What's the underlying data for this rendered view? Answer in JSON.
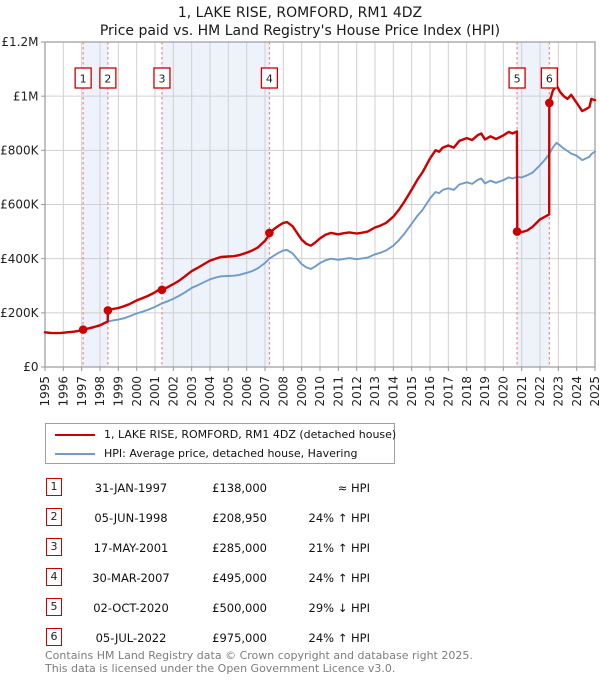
{
  "title": "1, LAKE RISE, ROMFORD, RM1 4DZ",
  "subtitle": "Price paid vs. HM Land Registry's House Price Index (HPI)",
  "legend": {
    "series1": "1, LAKE RISE, ROMFORD, RM1 4DZ (detached house)",
    "series2": "HPI: Average price, detached house, Havering"
  },
  "sales": [
    {
      "num": "1",
      "date": "31-JAN-1997",
      "price": "£138,000",
      "hpi": "≈ HPI",
      "x": 1997.08,
      "value": 138
    },
    {
      "num": "2",
      "date": "05-JUN-1998",
      "price": "£208,950",
      "hpi": "24% ↑ HPI",
      "x": 1998.43,
      "value": 208.95
    },
    {
      "num": "3",
      "date": "17-MAY-2001",
      "price": "£285,000",
      "hpi": "21% ↑ HPI",
      "x": 2001.38,
      "value": 285
    },
    {
      "num": "4",
      "date": "30-MAR-2007",
      "price": "£495,000",
      "hpi": "24% ↑ HPI",
      "x": 2007.24,
      "value": 495
    },
    {
      "num": "5",
      "date": "02-OCT-2020",
      "price": "£500,000",
      "hpi": "29% ↓ HPI",
      "x": 2020.75,
      "value": 500
    },
    {
      "num": "6",
      "date": "05-JUL-2022",
      "price": "£975,000",
      "hpi": "24% ↑ HPI",
      "x": 2022.51,
      "value": 975
    }
  ],
  "footer": {
    "line1": "Contains HM Land Registry data © Crown copyright and database right 2025.",
    "line2": "This data is licensed under the Open Government Licence v3.0."
  },
  "chart_data": {
    "type": "line",
    "title": "1, LAKE RISE, ROMFORD, RM1 4DZ",
    "subtitle": "Price paid vs. HM Land Registry's House Price Index (HPI)",
    "x_range": [
      1995,
      2025
    ],
    "y_range_thousands": [
      0,
      1200
    ],
    "grid": true,
    "legend_position": "below",
    "y_ticks": [
      {
        "v": 0,
        "label": "£0"
      },
      {
        "v": 200,
        "label": "£200K"
      },
      {
        "v": 400,
        "label": "£400K"
      },
      {
        "v": 600,
        "label": "£600K"
      },
      {
        "v": 800,
        "label": "£800K"
      },
      {
        "v": 1000,
        "label": "£1M"
      },
      {
        "v": 1200,
        "label": "£1.2M"
      }
    ],
    "x_ticks": [
      "1995",
      "1996",
      "1997",
      "1998",
      "1999",
      "2000",
      "2001",
      "2002",
      "2003",
      "2004",
      "2005",
      "2006",
      "2007",
      "2008",
      "2009",
      "2010",
      "2011",
      "2012",
      "2013",
      "2014",
      "2015",
      "2016",
      "2017",
      "2018",
      "2019",
      "2020",
      "2021",
      "2022",
      "2023",
      "2024",
      "2025"
    ],
    "bands": [
      [
        1997.08,
        1998.43
      ],
      [
        2001.38,
        2007.24
      ],
      [
        2020.75,
        2022.51
      ]
    ],
    "colors": {
      "property": "#cc0000",
      "hpi": "#6f9bcb",
      "band": "#edf2fb",
      "grid": "#d0d0d0",
      "border": "#9a9a9a",
      "dashed": "#ef8a8a",
      "tick_text": "#222222"
    },
    "series": [
      {
        "name": "1, LAKE RISE, ROMFORD, RM1 4DZ (detached house)",
        "color": "#cc0000",
        "width": 2.4,
        "points": [
          [
            1995.0,
            128
          ],
          [
            1995.3,
            126
          ],
          [
            1995.6,
            125
          ],
          [
            1995.9,
            126
          ],
          [
            1996.2,
            128
          ],
          [
            1996.5,
            130
          ],
          [
            1996.8,
            133
          ],
          [
            1997.08,
            138
          ],
          [
            1997.4,
            143
          ],
          [
            1997.7,
            148
          ],
          [
            1998.0,
            154
          ],
          [
            1998.2,
            161
          ],
          [
            1998.42,
            168
          ],
          [
            1998.43,
            209
          ],
          [
            1998.7,
            214
          ],
          [
            1999.0,
            218
          ],
          [
            1999.3,
            224
          ],
          [
            1999.6,
            232
          ],
          [
            2000.0,
            246
          ],
          [
            2000.3,
            254
          ],
          [
            2000.6,
            262
          ],
          [
            2001.0,
            276
          ],
          [
            2001.37,
            292
          ],
          [
            2001.38,
            285
          ],
          [
            2001.7,
            295
          ],
          [
            2002.0,
            306
          ],
          [
            2002.3,
            318
          ],
          [
            2002.6,
            333
          ],
          [
            2003.0,
            354
          ],
          [
            2003.3,
            365
          ],
          [
            2003.6,
            377
          ],
          [
            2004.0,
            393
          ],
          [
            2004.3,
            400
          ],
          [
            2004.6,
            406
          ],
          [
            2005.0,
            408
          ],
          [
            2005.3,
            409
          ],
          [
            2005.6,
            413
          ],
          [
            2006.0,
            422
          ],
          [
            2006.3,
            430
          ],
          [
            2006.6,
            441
          ],
          [
            2007.0,
            466
          ],
          [
            2007.2,
            485
          ],
          [
            2007.24,
            495
          ],
          [
            2007.5,
            510
          ],
          [
            2007.75,
            522
          ],
          [
            2008.0,
            532
          ],
          [
            2008.2,
            535
          ],
          [
            2008.5,
            520
          ],
          [
            2008.75,
            495
          ],
          [
            2009.0,
            470
          ],
          [
            2009.25,
            455
          ],
          [
            2009.5,
            448
          ],
          [
            2009.75,
            460
          ],
          [
            2010.0,
            475
          ],
          [
            2010.3,
            488
          ],
          [
            2010.6,
            495
          ],
          [
            2011.0,
            490
          ],
          [
            2011.3,
            494
          ],
          [
            2011.6,
            497
          ],
          [
            2012.0,
            493
          ],
          [
            2012.3,
            496
          ],
          [
            2012.6,
            500
          ],
          [
            2013.0,
            515
          ],
          [
            2013.3,
            522
          ],
          [
            2013.6,
            532
          ],
          [
            2014.0,
            555
          ],
          [
            2014.3,
            580
          ],
          [
            2014.6,
            610
          ],
          [
            2015.0,
            655
          ],
          [
            2015.3,
            690
          ],
          [
            2015.6,
            720
          ],
          [
            2016.0,
            770
          ],
          [
            2016.3,
            800
          ],
          [
            2016.5,
            795
          ],
          [
            2016.7,
            810
          ],
          [
            2017.0,
            818
          ],
          [
            2017.3,
            810
          ],
          [
            2017.6,
            835
          ],
          [
            2018.0,
            845
          ],
          [
            2018.3,
            838
          ],
          [
            2018.6,
            856
          ],
          [
            2018.8,
            862
          ],
          [
            2019.0,
            840
          ],
          [
            2019.3,
            852
          ],
          [
            2019.6,
            842
          ],
          [
            2020.0,
            855
          ],
          [
            2020.3,
            868
          ],
          [
            2020.5,
            862
          ],
          [
            2020.74,
            870
          ],
          [
            2020.76,
            500
          ],
          [
            2021.0,
            498
          ],
          [
            2021.3,
            504
          ],
          [
            2021.6,
            518
          ],
          [
            2022.0,
            545
          ],
          [
            2022.3,
            556
          ],
          [
            2022.5,
            564
          ],
          [
            2022.51,
            975
          ],
          [
            2022.7,
            1020
          ],
          [
            2022.9,
            1040
          ],
          [
            2023.1,
            1015
          ],
          [
            2023.3,
            1000
          ],
          [
            2023.5,
            990
          ],
          [
            2023.7,
            1005
          ],
          [
            2024.0,
            975
          ],
          [
            2024.3,
            945
          ],
          [
            2024.5,
            952
          ],
          [
            2024.7,
            960
          ],
          [
            2024.8,
            990
          ],
          [
            2025.0,
            985
          ]
        ]
      },
      {
        "name": "HPI: Average price, detached house, Havering",
        "color": "#6f9bcb",
        "width": 1.9,
        "points": [
          [
            1995.0,
            128
          ],
          [
            1995.3,
            126
          ],
          [
            1995.6,
            125
          ],
          [
            1995.9,
            126
          ],
          [
            1996.2,
            128
          ],
          [
            1996.5,
            130
          ],
          [
            1996.8,
            133
          ],
          [
            1997.08,
            138
          ],
          [
            1997.4,
            143
          ],
          [
            1997.7,
            148
          ],
          [
            1998.0,
            154
          ],
          [
            1998.2,
            161
          ],
          [
            1998.42,
            168
          ],
          [
            1998.7,
            172
          ],
          [
            1999.0,
            175
          ],
          [
            1999.3,
            180
          ],
          [
            1999.6,
            187
          ],
          [
            2000.0,
            198
          ],
          [
            2000.3,
            204
          ],
          [
            2000.6,
            211
          ],
          [
            2001.0,
            222
          ],
          [
            2001.38,
            235
          ],
          [
            2001.7,
            243
          ],
          [
            2002.0,
            252
          ],
          [
            2002.3,
            262
          ],
          [
            2002.6,
            274
          ],
          [
            2003.0,
            292
          ],
          [
            2003.3,
            301
          ],
          [
            2003.6,
            311
          ],
          [
            2004.0,
            324
          ],
          [
            2004.3,
            330
          ],
          [
            2004.6,
            335
          ],
          [
            2005.0,
            336
          ],
          [
            2005.3,
            337
          ],
          [
            2005.6,
            340
          ],
          [
            2006.0,
            348
          ],
          [
            2006.3,
            354
          ],
          [
            2006.6,
            364
          ],
          [
            2007.0,
            384
          ],
          [
            2007.24,
            400
          ],
          [
            2007.5,
            412
          ],
          [
            2007.75,
            422
          ],
          [
            2008.0,
            430
          ],
          [
            2008.2,
            432
          ],
          [
            2008.5,
            420
          ],
          [
            2008.75,
            400
          ],
          [
            2009.0,
            380
          ],
          [
            2009.25,
            368
          ],
          [
            2009.5,
            362
          ],
          [
            2009.75,
            372
          ],
          [
            2010.0,
            384
          ],
          [
            2010.3,
            394
          ],
          [
            2010.6,
            400
          ],
          [
            2011.0,
            396
          ],
          [
            2011.3,
            399
          ],
          [
            2011.6,
            402
          ],
          [
            2012.0,
            398
          ],
          [
            2012.3,
            401
          ],
          [
            2012.6,
            404
          ],
          [
            2013.0,
            416
          ],
          [
            2013.3,
            422
          ],
          [
            2013.6,
            430
          ],
          [
            2014.0,
            448
          ],
          [
            2014.3,
            468
          ],
          [
            2014.6,
            492
          ],
          [
            2015.0,
            529
          ],
          [
            2015.3,
            557
          ],
          [
            2015.6,
            581
          ],
          [
            2016.0,
            622
          ],
          [
            2016.3,
            646
          ],
          [
            2016.5,
            642
          ],
          [
            2016.7,
            654
          ],
          [
            2017.0,
            660
          ],
          [
            2017.3,
            654
          ],
          [
            2017.6,
            674
          ],
          [
            2018.0,
            682
          ],
          [
            2018.3,
            676
          ],
          [
            2018.6,
            691
          ],
          [
            2018.8,
            696
          ],
          [
            2019.0,
            678
          ],
          [
            2019.3,
            688
          ],
          [
            2019.6,
            680
          ],
          [
            2020.0,
            690
          ],
          [
            2020.3,
            700
          ],
          [
            2020.5,
            696
          ],
          [
            2020.75,
            702
          ],
          [
            2021.0,
            700
          ],
          [
            2021.3,
            708
          ],
          [
            2021.6,
            718
          ],
          [
            2022.0,
            745
          ],
          [
            2022.3,
            768
          ],
          [
            2022.5,
            786
          ],
          [
            2022.7,
            810
          ],
          [
            2022.9,
            828
          ],
          [
            2023.1,
            818
          ],
          [
            2023.3,
            806
          ],
          [
            2023.5,
            798
          ],
          [
            2023.7,
            788
          ],
          [
            2024.0,
            780
          ],
          [
            2024.3,
            764
          ],
          [
            2024.5,
            770
          ],
          [
            2024.7,
            776
          ],
          [
            2024.8,
            786
          ],
          [
            2025.0,
            795
          ]
        ]
      }
    ]
  }
}
